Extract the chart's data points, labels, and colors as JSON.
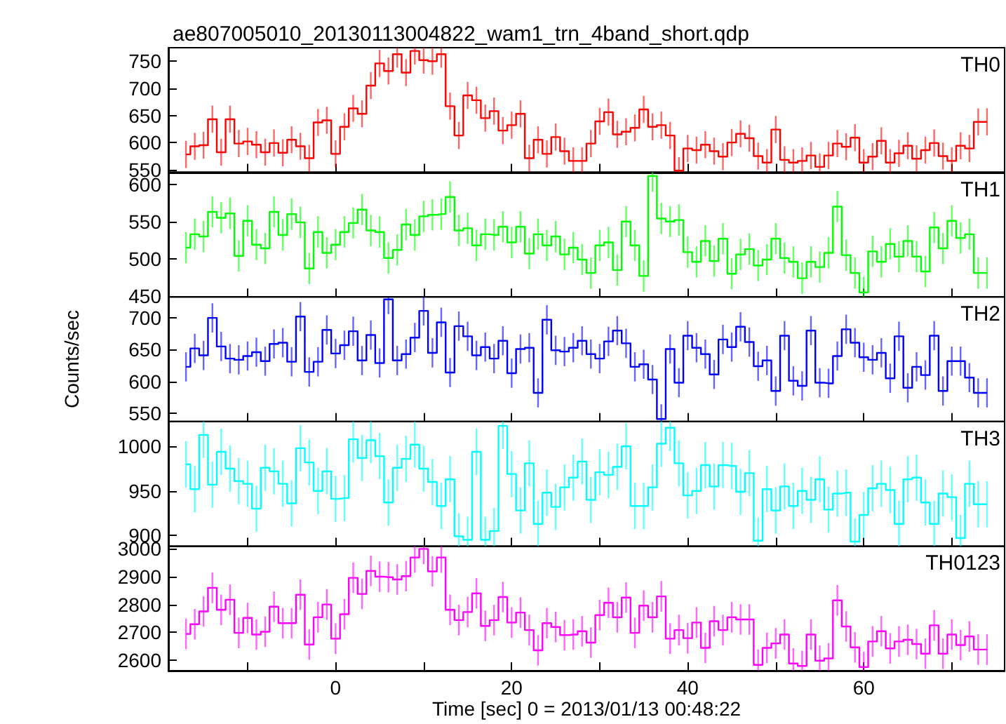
{
  "chart_data": [
    {
      "type": "step",
      "title": "ae807005010_20130113004822_wam1_trn_4band_short.qdp",
      "tick_labels": "y",
      "xlim": [
        -19,
        76
      ],
      "xticks": [
        {
          "value": -10,
          "label": null
        },
        0,
        {
          "value": 10,
          "label": null
        },
        20,
        {
          "value": 30,
          "label": null
        },
        40,
        {
          "value": 50,
          "label": null
        },
        60,
        {
          "value": 70,
          "label": null
        }
      ],
      "ylim": [
        545,
        775
      ],
      "yticks": [
        550,
        600,
        650,
        700,
        750
      ],
      "x": [
        -17,
        -16,
        -15,
        -14,
        -13,
        -12,
        -11,
        -10,
        -9,
        -8,
        -7,
        -6,
        -5,
        -4,
        -3,
        -2,
        -1,
        0,
        1,
        2,
        3,
        4,
        5,
        6,
        7,
        8,
        9,
        10,
        11,
        12,
        13,
        14,
        15,
        16,
        17,
        18,
        19,
        20,
        21,
        22,
        23,
        24,
        25,
        26,
        27,
        28,
        29,
        30,
        31,
        32,
        33,
        34,
        35,
        36,
        37,
        38,
        39,
        40,
        41,
        42,
        43,
        44,
        45,
        46,
        47,
        48,
        49,
        50,
        51,
        52,
        53,
        54,
        55,
        56,
        57,
        58,
        59,
        60,
        61,
        62,
        63,
        64,
        65,
        66,
        67,
        68,
        69,
        70,
        71,
        72,
        73,
        74
      ],
      "series": [
        {
          "name": "TH0",
          "color": "#ff0000",
          "values": [
            578,
            593,
            595,
            643,
            582,
            643,
            598,
            602,
            596,
            582,
            599,
            581,
            605,
            593,
            571,
            637,
            641,
            579,
            629,
            663,
            653,
            705,
            746,
            732,
            763,
            729,
            769,
            752,
            750,
            763,
            667,
            613,
            687,
            678,
            645,
            658,
            622,
            632,
            653,
            571,
            605,
            579,
            610,
            584,
            566,
            566,
            598,
            639,
            656,
            615,
            620,
            627,
            661,
            629,
            632,
            613,
            548,
            589,
            586,
            596,
            584,
            574,
            600,
            616,
            608,
            575,
            563,
            624,
            568,
            563,
            566,
            576,
            555,
            576,
            598,
            592,
            609,
            563,
            574,
            603,
            563,
            580,
            594,
            570,
            586,
            599,
            575,
            566,
            594,
            589,
            638,
            638
          ],
          "errors": [
            25,
            25,
            25,
            25,
            25,
            25,
            25,
            25,
            25,
            25,
            25,
            25,
            25,
            25,
            25,
            25,
            25,
            25,
            25,
            25,
            25,
            25,
            25,
            25,
            25,
            25,
            25,
            25,
            25,
            25,
            25,
            25,
            25,
            25,
            25,
            25,
            25,
            25,
            25,
            25,
            25,
            25,
            25,
            25,
            25,
            25,
            25,
            25,
            25,
            25,
            25,
            25,
            25,
            25,
            25,
            25,
            25,
            25,
            25,
            25,
            25,
            25,
            25,
            25,
            25,
            25,
            25,
            25,
            25,
            25,
            25,
            25,
            25,
            25,
            25,
            25,
            25,
            25,
            25,
            25,
            25,
            25,
            25,
            25,
            25,
            25,
            25,
            25,
            25,
            25,
            25,
            25
          ]
        }
      ]
    },
    {
      "type": "step",
      "tick_labels": "y",
      "xlim": [
        -19,
        76
      ],
      "xticks": [
        {
          "value": -10,
          "label": null
        },
        0,
        {
          "value": 10,
          "label": null
        },
        20,
        {
          "value": 30,
          "label": null
        },
        40,
        {
          "value": 50,
          "label": null
        },
        60,
        {
          "value": 70,
          "label": null
        }
      ],
      "ylim": [
        449,
        616
      ],
      "yticks": [
        450,
        500,
        550,
        600
      ],
      "x": [
        -17,
        -16,
        -15,
        -14,
        -13,
        -12,
        -11,
        -10,
        -9,
        -8,
        -7,
        -6,
        -5,
        -4,
        -3,
        -2,
        -1,
        0,
        1,
        2,
        3,
        4,
        5,
        6,
        7,
        8,
        9,
        10,
        11,
        12,
        13,
        14,
        15,
        16,
        17,
        18,
        19,
        20,
        21,
        22,
        23,
        24,
        25,
        26,
        27,
        28,
        29,
        30,
        31,
        32,
        33,
        34,
        35,
        36,
        37,
        38,
        39,
        40,
        41,
        42,
        43,
        44,
        45,
        46,
        47,
        48,
        49,
        50,
        51,
        52,
        53,
        54,
        55,
        56,
        57,
        58,
        59,
        60,
        61,
        62,
        63,
        64,
        65,
        66,
        67,
        68,
        69,
        70,
        71,
        72,
        73,
        74
      ],
      "series": [
        {
          "name": "TH1",
          "color": "#00ff00",
          "values": [
            515,
            533,
            530,
            563,
            555,
            561,
            504,
            551,
            519,
            514,
            563,
            532,
            560,
            549,
            487,
            536,
            508,
            519,
            536,
            548,
            566,
            538,
            536,
            501,
            512,
            546,
            532,
            557,
            559,
            560,
            583,
            538,
            541,
            518,
            533,
            532,
            543,
            522,
            543,
            507,
            533,
            518,
            530,
            506,
            515,
            499,
            481,
            518,
            522,
            485,
            550,
            518,
            477,
            611,
            554,
            550,
            552,
            509,
            496,
            524,
            497,
            527,
            480,
            506,
            513,
            491,
            499,
            527,
            501,
            496,
            474,
            496,
            489,
            508,
            570,
            505,
            481,
            455,
            510,
            496,
            520,
            503,
            524,
            503,
            483,
            542,
            514,
            551,
            528,
            533,
            481,
            481
          ],
          "errors": [
            21,
            21,
            21,
            21,
            21,
            21,
            21,
            21,
            21,
            21,
            21,
            21,
            21,
            21,
            21,
            21,
            21,
            21,
            21,
            21,
            21,
            21,
            21,
            21,
            21,
            21,
            21,
            21,
            21,
            21,
            21,
            21,
            21,
            21,
            21,
            21,
            21,
            21,
            21,
            21,
            21,
            21,
            21,
            21,
            21,
            21,
            21,
            21,
            21,
            21,
            21,
            21,
            21,
            21,
            21,
            21,
            21,
            21,
            21,
            21,
            21,
            21,
            21,
            21,
            21,
            21,
            21,
            21,
            21,
            21,
            21,
            21,
            21,
            21,
            21,
            21,
            21,
            21,
            21,
            21,
            21,
            21,
            21,
            21,
            21,
            21,
            21,
            21,
            21,
            21,
            21,
            21
          ]
        }
      ]
    },
    {
      "type": "step",
      "ylabel": "Counts/sec",
      "tick_labels": "y",
      "xlim": [
        -19,
        76
      ],
      "xticks": [
        {
          "value": -10,
          "label": null
        },
        0,
        {
          "value": 10,
          "label": null
        },
        20,
        {
          "value": 30,
          "label": null
        },
        40,
        {
          "value": 50,
          "label": null
        },
        60,
        {
          "value": 70,
          "label": null
        }
      ],
      "ylim": [
        537,
        733
      ],
      "yticks": [
        550,
        600,
        650,
        700
      ],
      "x": [
        -17,
        -16,
        -15,
        -14,
        -13,
        -12,
        -11,
        -10,
        -9,
        -8,
        -7,
        -6,
        -5,
        -4,
        -3,
        -2,
        -1,
        0,
        1,
        2,
        3,
        4,
        5,
        6,
        7,
        8,
        9,
        10,
        11,
        12,
        13,
        14,
        15,
        16,
        17,
        18,
        19,
        20,
        21,
        22,
        23,
        24,
        25,
        26,
        27,
        28,
        29,
        30,
        31,
        32,
        33,
        34,
        35,
        36,
        37,
        38,
        39,
        40,
        41,
        42,
        43,
        44,
        45,
        46,
        47,
        48,
        49,
        50,
        51,
        52,
        53,
        54,
        55,
        56,
        57,
        58,
        59,
        60,
        61,
        62,
        63,
        64,
        65,
        66,
        67,
        68,
        69,
        70,
        71,
        72,
        73,
        74
      ],
      "series": [
        {
          "name": "TH2",
          "color": "#0000ff",
          "values": [
            623,
            652,
            641,
            700,
            655,
            636,
            634,
            640,
            646,
            632,
            659,
            661,
            631,
            702,
            615,
            631,
            681,
            644,
            657,
            679,
            633,
            673,
            629,
            729,
            633,
            643,
            669,
            711,
            645,
            693,
            614,
            687,
            671,
            641,
            654,
            636,
            664,
            613,
            651,
            653,
            582,
            697,
            649,
            647,
            653,
            664,
            643,
            636,
            663,
            680,
            660,
            623,
            627,
            603,
            541,
            651,
            598,
            672,
            653,
            643,
            611,
            666,
            654,
            686,
            662,
            624,
            633,
            585,
            672,
            601,
            593,
            680,
            598,
            597,
            640,
            682,
            661,
            638,
            634,
            645,
            605,
            671,
            590,
            623,
            610,
            672,
            585,
            632,
            632,
            606,
            582,
            582
          ],
          "errors": [
            23,
            23,
            23,
            23,
            23,
            23,
            23,
            23,
            23,
            23,
            23,
            23,
            23,
            23,
            23,
            23,
            23,
            23,
            23,
            23,
            23,
            23,
            23,
            23,
            23,
            23,
            23,
            23,
            23,
            23,
            23,
            23,
            23,
            23,
            23,
            23,
            23,
            23,
            23,
            23,
            23,
            23,
            23,
            23,
            23,
            23,
            23,
            23,
            23,
            23,
            23,
            23,
            23,
            23,
            23,
            23,
            23,
            23,
            23,
            23,
            23,
            23,
            23,
            23,
            23,
            23,
            23,
            23,
            23,
            23,
            23,
            23,
            23,
            23,
            23,
            23,
            23,
            23,
            23,
            23,
            23,
            23,
            23,
            23,
            23,
            23,
            23,
            23,
            23,
            23,
            23,
            23
          ]
        }
      ]
    },
    {
      "type": "step",
      "tick_labels": "y",
      "xlim": [
        -19,
        76
      ],
      "xticks": [
        {
          "value": -10,
          "label": null
        },
        0,
        {
          "value": 10,
          "label": null
        },
        20,
        {
          "value": 30,
          "label": null
        },
        40,
        {
          "value": 50,
          "label": null
        },
        60,
        {
          "value": 70,
          "label": null
        }
      ],
      "ylim": [
        888,
        1028
      ],
      "yticks": [
        900,
        950,
        1000
      ],
      "x": [
        -17,
        -16,
        -15,
        -14,
        -13,
        -12,
        -11,
        -10,
        -9,
        -8,
        -7,
        -6,
        -5,
        -4,
        -3,
        -2,
        -1,
        0,
        1,
        2,
        3,
        4,
        5,
        6,
        7,
        8,
        9,
        10,
        11,
        12,
        13,
        14,
        15,
        16,
        17,
        18,
        19,
        20,
        21,
        22,
        23,
        24,
        25,
        26,
        27,
        28,
        29,
        30,
        31,
        32,
        33,
        34,
        35,
        36,
        37,
        38,
        39,
        40,
        41,
        42,
        43,
        44,
        45,
        46,
        47,
        48,
        49,
        50,
        51,
        52,
        53,
        54,
        55,
        56,
        57,
        58,
        59,
        60,
        61,
        62,
        63,
        64,
        65,
        66,
        67,
        68,
        69,
        70,
        71,
        72,
        73,
        74
      ],
      "series": [
        {
          "name": "TH3",
          "color": "#00ffff",
          "values": [
            980,
            952,
            1013,
            957,
            994,
            975,
            961,
            958,
            930,
            976,
            972,
            958,
            936,
            998,
            982,
            950,
            972,
            941,
            942,
            1008,
            987,
            1007,
            989,
            937,
            976,
            986,
            1002,
            975,
            960,
            933,
            963,
            899,
            895,
            994,
            895,
            905,
            1023,
            969,
            928,
            981,
            913,
            948,
            932,
            954,
            965,
            983,
            940,
            971,
            968,
            977,
            1000,
            933,
            933,
            954,
            1003,
            1021,
            981,
            945,
            950,
            979,
            955,
            979,
            978,
            949,
            970,
            894,
            952,
            928,
            955,
            933,
            950,
            940,
            963,
            929,
            947,
            948,
            893,
            923,
            953,
            958,
            951,
            913,
            963,
            965,
            937,
            913,
            947,
            943,
            897,
            958,
            935,
            935
          ],
          "errors": [
            26,
            26,
            26,
            26,
            26,
            26,
            26,
            26,
            26,
            26,
            26,
            26,
            26,
            26,
            26,
            26,
            26,
            26,
            26,
            26,
            26,
            26,
            26,
            26,
            26,
            26,
            26,
            26,
            26,
            26,
            26,
            26,
            26,
            26,
            26,
            26,
            26,
            26,
            26,
            26,
            26,
            26,
            26,
            26,
            26,
            26,
            26,
            26,
            26,
            26,
            26,
            26,
            26,
            26,
            26,
            26,
            26,
            26,
            26,
            26,
            26,
            26,
            26,
            26,
            26,
            26,
            26,
            26,
            26,
            26,
            26,
            26,
            26,
            26,
            26,
            26,
            26,
            26,
            26,
            26,
            26,
            26,
            26,
            26,
            26,
            26,
            26,
            26,
            26,
            26,
            26,
            26
          ]
        }
      ]
    },
    {
      "type": "step",
      "xlabel": "Time [sec] 0 = 2013/01/13 00:48:22",
      "xlim": [
        -19,
        76
      ],
      "xticks": [
        {
          "value": -10,
          "label": null
        },
        0,
        {
          "value": 10,
          "label": null
        },
        20,
        {
          "value": 30,
          "label": null
        },
        40,
        {
          "value": 50,
          "label": null
        },
        60,
        {
          "value": 70,
          "label": null
        }
      ],
      "ylim": [
        2562,
        3010
      ],
      "yticks": [
        2600,
        2700,
        2800,
        2900,
        3000
      ],
      "x": [
        -17,
        -16,
        -15,
        -14,
        -13,
        -12,
        -11,
        -10,
        -9,
        -8,
        -7,
        -6,
        -5,
        -4,
        -3,
        -2,
        -1,
        0,
        1,
        2,
        3,
        4,
        5,
        6,
        7,
        8,
        9,
        10,
        11,
        12,
        13,
        14,
        15,
        16,
        17,
        18,
        19,
        20,
        21,
        22,
        23,
        24,
        25,
        26,
        27,
        28,
        29,
        30,
        31,
        32,
        33,
        34,
        35,
        36,
        37,
        38,
        39,
        40,
        41,
        42,
        43,
        44,
        45,
        46,
        47,
        48,
        49,
        50,
        51,
        52,
        53,
        54,
        55,
        56,
        57,
        58,
        59,
        60,
        61,
        62,
        63,
        64,
        65,
        66,
        67,
        68,
        69,
        70,
        71,
        72,
        73,
        74
      ],
      "series": [
        {
          "name": "TH0123",
          "color": "#ff00ff",
          "values": [
            2694,
            2729,
            2775,
            2860,
            2781,
            2817,
            2698,
            2752,
            2692,
            2702,
            2792,
            2733,
            2733,
            2835,
            2656,
            2754,
            2800,
            2677,
            2765,
            2896,
            2838,
            2921,
            2900,
            2898,
            2890,
            2902,
            2969,
            3000,
            2919,
            2969,
            2781,
            2744,
            2773,
            2840,
            2723,
            2744,
            2827,
            2735,
            2771,
            2708,
            2635,
            2733,
            2719,
            2690,
            2692,
            2704,
            2663,
            2762,
            2806,
            2754,
            2825,
            2698,
            2796,
            2754,
            2829,
            2677,
            2708,
            2679,
            2735,
            2644,
            2740,
            2708,
            2754,
            2746,
            2746,
            2583,
            2644,
            2660,
            2692,
            2588,
            2579,
            2692,
            2598,
            2606,
            2815,
            2721,
            2646,
            2575,
            2667,
            2704,
            2642,
            2667,
            2673,
            2658,
            2623,
            2725,
            2623,
            2692,
            2654,
            2685,
            2638,
            2638
          ],
          "errors": [
            55,
            55,
            55,
            55,
            55,
            55,
            55,
            55,
            55,
            55,
            55,
            55,
            55,
            55,
            55,
            55,
            55,
            55,
            55,
            55,
            55,
            55,
            55,
            55,
            55,
            55,
            55,
            55,
            55,
            55,
            55,
            55,
            55,
            55,
            55,
            55,
            55,
            55,
            55,
            55,
            55,
            55,
            55,
            55,
            55,
            55,
            55,
            55,
            55,
            55,
            55,
            55,
            55,
            55,
            55,
            55,
            55,
            55,
            55,
            55,
            55,
            55,
            55,
            55,
            55,
            55,
            55,
            55,
            55,
            55,
            55,
            55,
            55,
            55,
            55,
            55,
            55,
            55,
            55,
            55,
            55,
            55,
            55,
            55,
            55,
            55,
            55,
            55,
            55,
            55,
            55,
            55
          ]
        }
      ]
    }
  ]
}
